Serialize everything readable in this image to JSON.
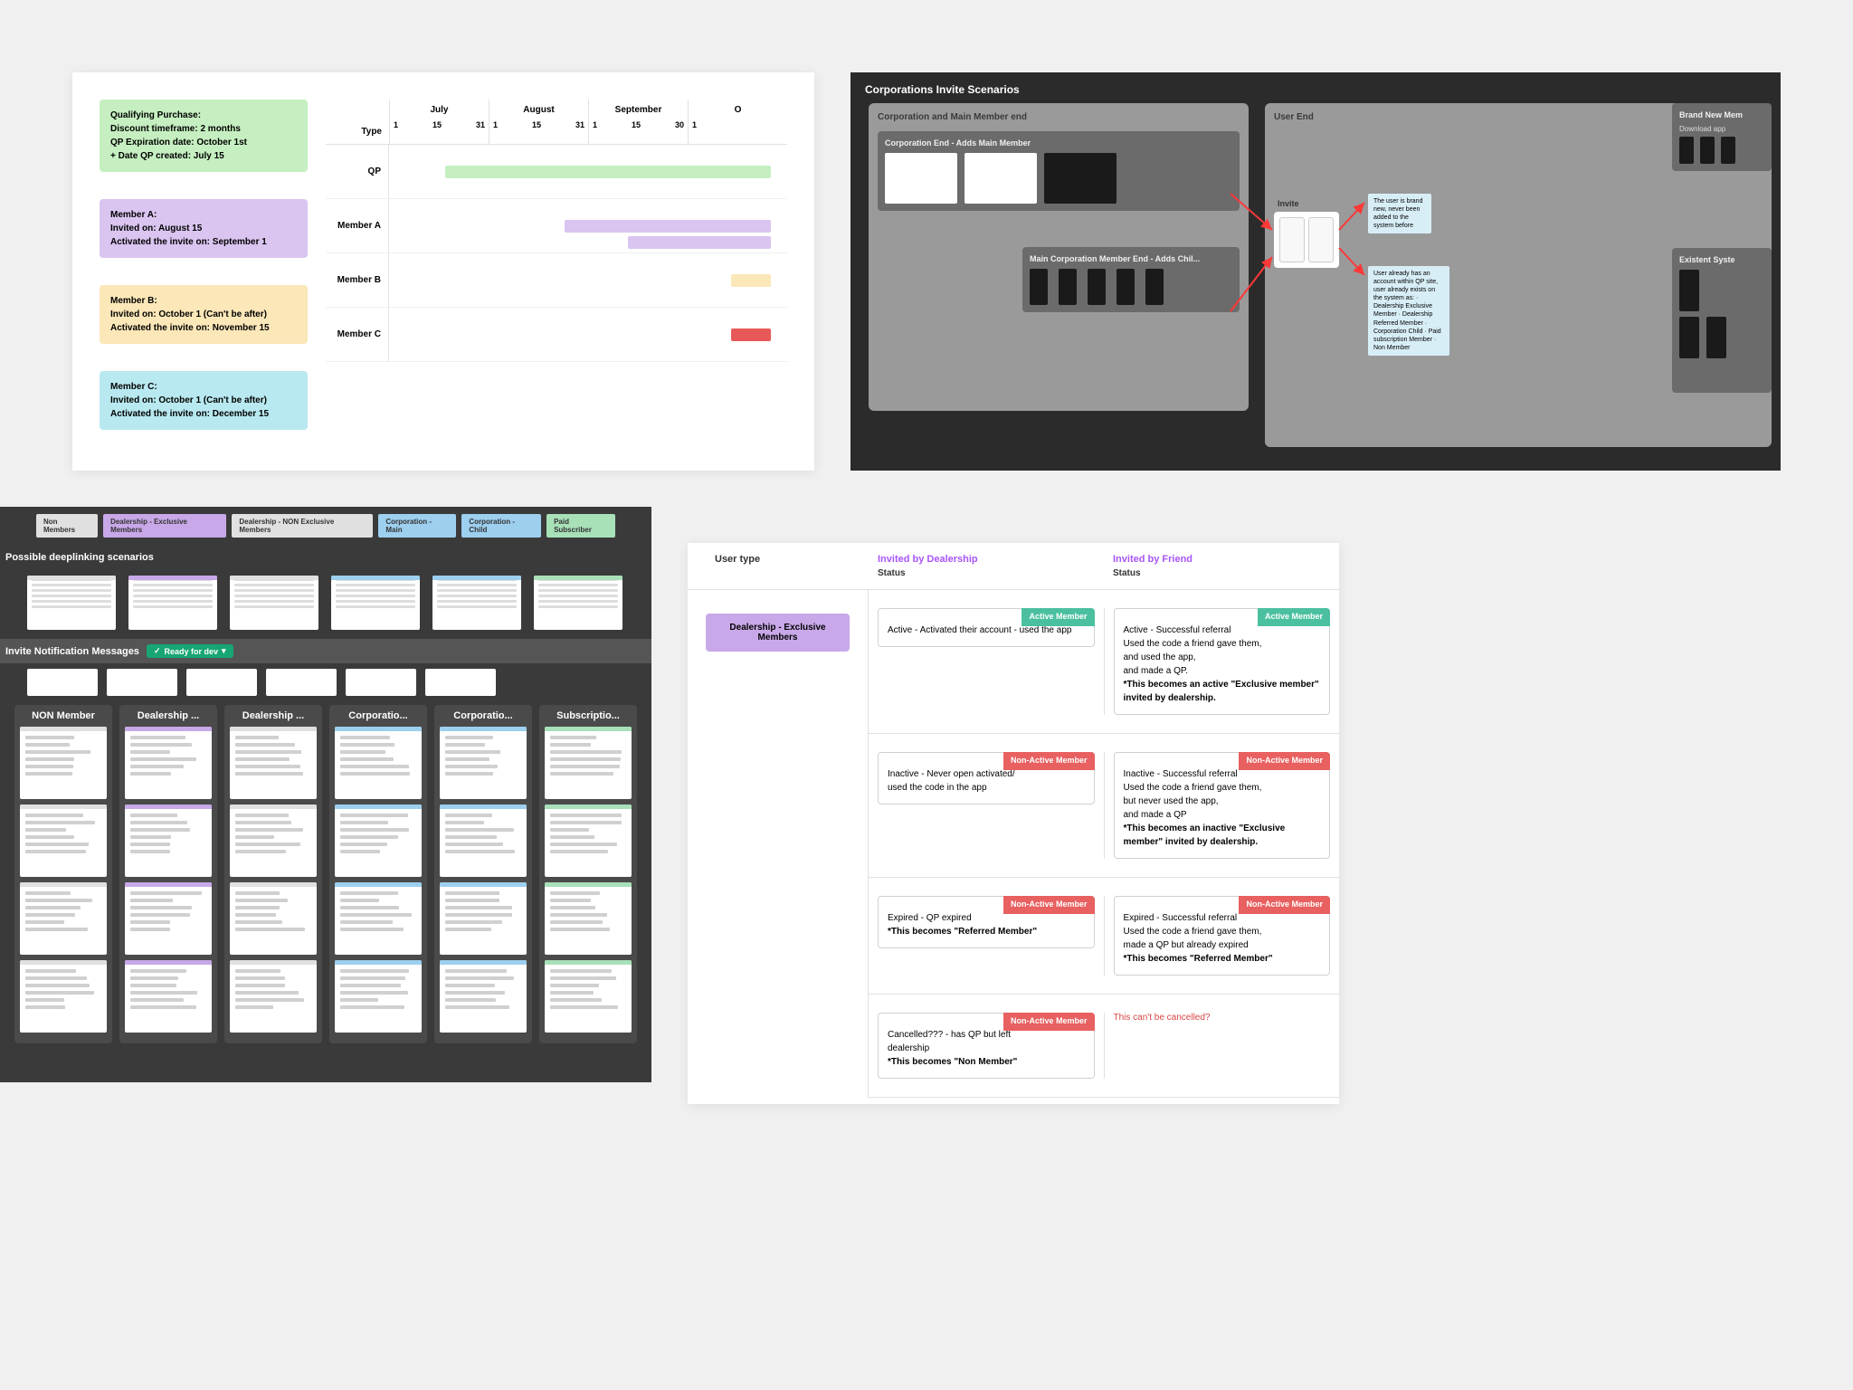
{
  "colors": {
    "green": "#c5efc0",
    "purple": "#d9c5f0",
    "yellow": "#fbe7b8",
    "cyan": "#b8e8f0",
    "red": "#e85858",
    "purple_dark": "#c8a8e8",
    "blue_tag": "#9dcfef",
    "green_tag": "#a8e0b8",
    "grey_tag": "#e0e0e0",
    "badge_active": "#4bc0a0",
    "badge_nonactive": "#e86060",
    "badge_ready": "#17a673",
    "magenta": "#a855f7"
  },
  "timeline": {
    "cards": [
      {
        "color_key": "green",
        "title": "Qualifying Purchase:",
        "lines": [
          "Discount timeframe: 2 months",
          "QP Expiration date: October 1st",
          "+ Date QP created: July 15"
        ]
      },
      {
        "color_key": "purple",
        "title": "Member A:",
        "lines": [
          "Invited on: August 15",
          "Activated the invite on: September 1"
        ]
      },
      {
        "color_key": "yellow",
        "title": "Member B:",
        "lines": [
          "Invited on: October 1 (Can't be after)",
          "Activated the invite on: November 15"
        ]
      },
      {
        "color_key": "cyan",
        "title": "Member C:",
        "lines": [
          "Invited on: October 1 (Can't be after)",
          "Activated the invite on: December 15"
        ]
      }
    ],
    "type_header": "Type",
    "months": [
      {
        "name": "July",
        "days": [
          "1",
          "15",
          "31"
        ]
      },
      {
        "name": "August",
        "days": [
          "1",
          "15",
          "31"
        ]
      },
      {
        "name": "September",
        "days": [
          "1",
          "15",
          "30"
        ]
      },
      {
        "name": "O",
        "days": [
          "1"
        ]
      }
    ],
    "rows": [
      {
        "label": "QP",
        "bars": [
          {
            "left_pct": 14,
            "width_pct": 82,
            "color_key": "green"
          }
        ]
      },
      {
        "label": "Member A",
        "bars": [
          {
            "left_pct": 44,
            "width_pct": 52,
            "color_key": "purple"
          },
          {
            "left_pct": 60,
            "width_pct": 36,
            "color_key": "purple",
            "offset": 18
          }
        ]
      },
      {
        "label": "Member B",
        "bars": [
          {
            "left_pct": 86,
            "width_pct": 10,
            "color_key": "yellow"
          }
        ]
      },
      {
        "label": "Member C",
        "bars": [
          {
            "left_pct": 86,
            "width_pct": 10,
            "color_key": "red"
          }
        ]
      }
    ]
  },
  "flow": {
    "title": "Corporations Invite Scenarios",
    "group1_title": "Corporation and Main Member end",
    "sub1_title": "Corporation End - Adds Main Member",
    "sub2_title": "Main Corporation Member End - Adds Chil...",
    "group2_title": "User End",
    "invite_label": "Invite",
    "note1": "The user is brand new, never been added to the system before",
    "note2": "User already has an account within QP site, user already exists on the system as: · Dealership Exclusive Member · Dealership Referred Member · Corporation Child · Paid subscription Member · Non Member",
    "brand_new_title": "Brand New Mem",
    "brand_new_sub": "Download app",
    "existent_title": "Existent Syste"
  },
  "scenarios": {
    "tags": [
      {
        "label": "Non Members",
        "color_key": "grey_tag"
      },
      {
        "label": "Dealership - Exclusive Members",
        "color_key": "purple_dark"
      },
      {
        "label": "Dealership - NON Exclusive Members",
        "color_key": "grey_tag"
      },
      {
        "label": "Corporation - Main",
        "color_key": "blue_tag"
      },
      {
        "label": "Corporation - Child",
        "color_key": "blue_tag"
      },
      {
        "label": "Paid Subscriber",
        "color_key": "green_tag"
      }
    ],
    "section1_title": "Possible deeplinking scenarios",
    "thumb_colors": [
      "grey_tag",
      "purple_dark",
      "grey_tag",
      "blue_tag",
      "blue_tag",
      "green_tag"
    ],
    "section2_title": "Invite Notification Messages",
    "ready_badge": "Ready for dev",
    "columns": [
      {
        "title": "NON Member",
        "color_key": "grey_tag"
      },
      {
        "title": "Dealership ...",
        "color_key": "purple_dark"
      },
      {
        "title": "Dealership ...",
        "color_key": "grey_tag"
      },
      {
        "title": "Corporatio...",
        "color_key": "blue_tag"
      },
      {
        "title": "Corporatio...",
        "color_key": "blue_tag"
      },
      {
        "title": "Subscriptio...",
        "color_key": "green_tag"
      }
    ]
  },
  "status_table": {
    "col_usertype": "User type",
    "col_dealership": "Invited by Dealership",
    "col_friend": "Invited by Friend",
    "status_label": "Status",
    "pill_text": "Dealership - Exclusive Members",
    "badges": {
      "active": "Active Member",
      "nonactive": "Non-Active Member"
    },
    "rows": [
      {
        "left": {
          "badge": "active",
          "text": "Active - Activated their account - used the app"
        },
        "right": {
          "badge": "active",
          "text": "Active - Successful referral\nUsed the code a friend gave them,\nand used the app,\nand made a QP.",
          "bold": "*This becomes an active \"Exclusive member\" invited by dealership."
        }
      },
      {
        "left": {
          "badge": "nonactive",
          "text": "Inactive - Never open activated/\nused the code in the app"
        },
        "right": {
          "badge": "nonactive",
          "text": "Inactive - Successful referral\nUsed the code a friend gave them,\nbut never used the app,\nand made a QP",
          "bold": "*This becomes an inactive \"Exclusive member\" invited by dealership."
        }
      },
      {
        "left": {
          "badge": "nonactive",
          "text": "Expired - QP expired",
          "bold": "*This becomes \"Referred Member\""
        },
        "right": {
          "badge": "nonactive",
          "text": "Expired - Successful referral\nUsed the code a friend gave them,\nmade a QP but already expired",
          "bold": "*This becomes \"Referred Member\""
        }
      },
      {
        "left": {
          "badge": "nonactive",
          "text": "Cancelled??? - has QP but left\ndealership",
          "bold": "*This becomes \"Non Member\""
        },
        "right": {
          "warn": "This can't be cancelled?"
        }
      }
    ]
  }
}
